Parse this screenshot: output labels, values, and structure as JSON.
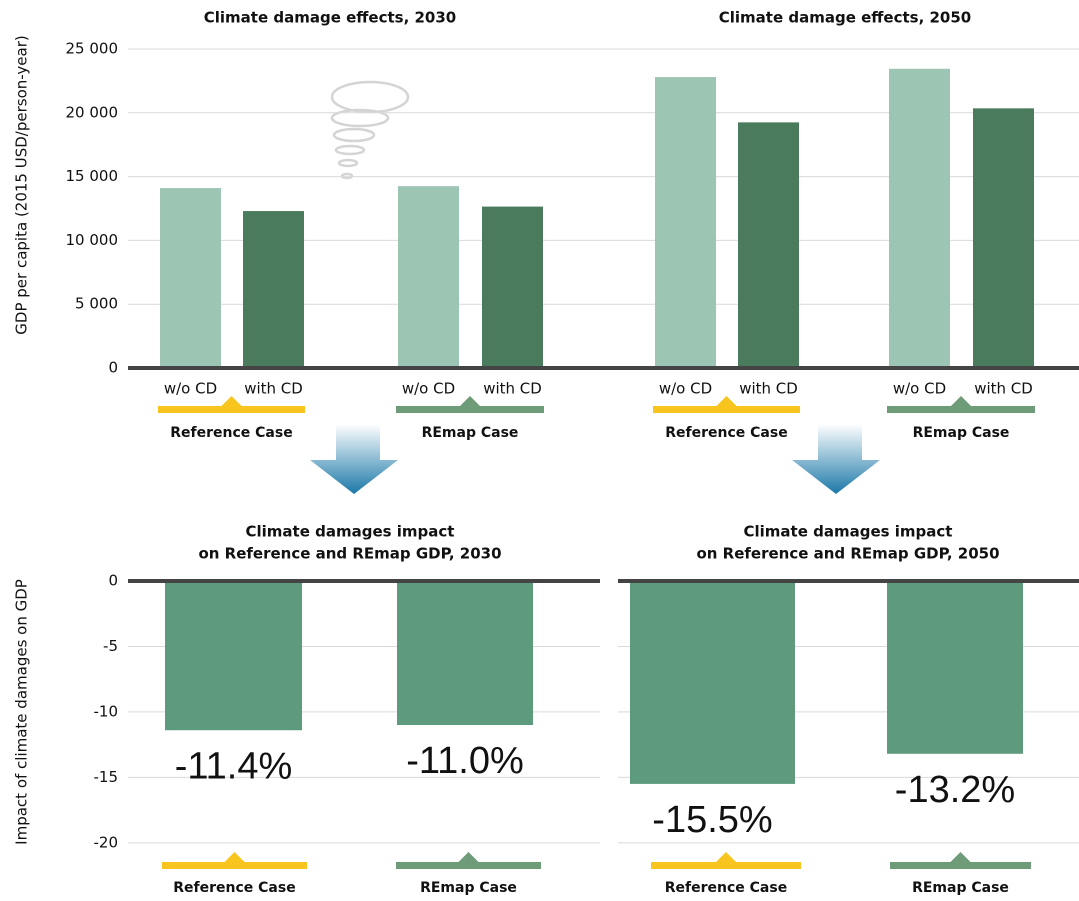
{
  "chart_data": [
    {
      "type": "bar",
      "ylabel": "GDP per capita (2015 USD/person-year)",
      "ylim": [
        0,
        25000
      ],
      "yticks": [
        0,
        {
          "value": 5000,
          "label": "5 000"
        },
        {
          "value": 10000,
          "label": "10 000"
        },
        {
          "value": 15000,
          "label": "15 000"
        },
        {
          "value": 20000,
          "label": "20 000"
        },
        {
          "value": 25000,
          "label": "25 000"
        }
      ],
      "grid": true,
      "bar_colors": [
        "#9dc5b3",
        "#4a7b5c"
      ],
      "panels": [
        {
          "title": "Climate damage effects, 2030",
          "groups": [
            {
              "name": "Reference Case",
              "color": "#f7c51e",
              "categories": [
                "w/o CD",
                "with CD"
              ],
              "values": [
                14100,
                12300
              ]
            },
            {
              "name": "REmap Case",
              "color": "#6e9c79",
              "categories": [
                "w/o CD",
                "with CD"
              ],
              "values": [
                14250,
                12650
              ]
            }
          ]
        },
        {
          "title": "Climate damage effects, 2050",
          "groups": [
            {
              "name": "Reference Case",
              "color": "#f7c51e",
              "categories": [
                "w/o CD",
                "with CD"
              ],
              "values": [
                22800,
                19250
              ]
            },
            {
              "name": "REmap Case",
              "color": "#6e9c79",
              "categories": [
                "w/o CD",
                "with CD"
              ],
              "values": [
                23450,
                20350
              ]
            }
          ]
        }
      ]
    },
    {
      "type": "bar",
      "ylabel": "Impact of climate damages on GDP",
      "ylim": [
        -22,
        0
      ],
      "yticks": [
        0,
        -5,
        -10,
        -15,
        -20
      ],
      "grid": true,
      "color": "#5e9a7c",
      "panels": [
        {
          "title": [
            "Climate damages impact",
            "on Reference and REmap GDP, 2030"
          ],
          "categories": [
            "Reference Case",
            "REmap Case"
          ],
          "category_colors": [
            "#f7c51e",
            "#6e9c79"
          ],
          "values": [
            -11.4,
            -11.0
          ],
          "value_labels": [
            "-11.4%",
            "-11.0%"
          ]
        },
        {
          "title": [
            "Climate damages impact",
            "on Reference and REmap GDP, 2050"
          ],
          "categories": [
            "Reference Case",
            "REmap Case"
          ],
          "category_colors": [
            "#f7c51e",
            "#6e9c79"
          ],
          "values": [
            -15.5,
            -13.2
          ],
          "value_labels": [
            "-15.5%",
            "-13.2%"
          ]
        }
      ]
    }
  ]
}
